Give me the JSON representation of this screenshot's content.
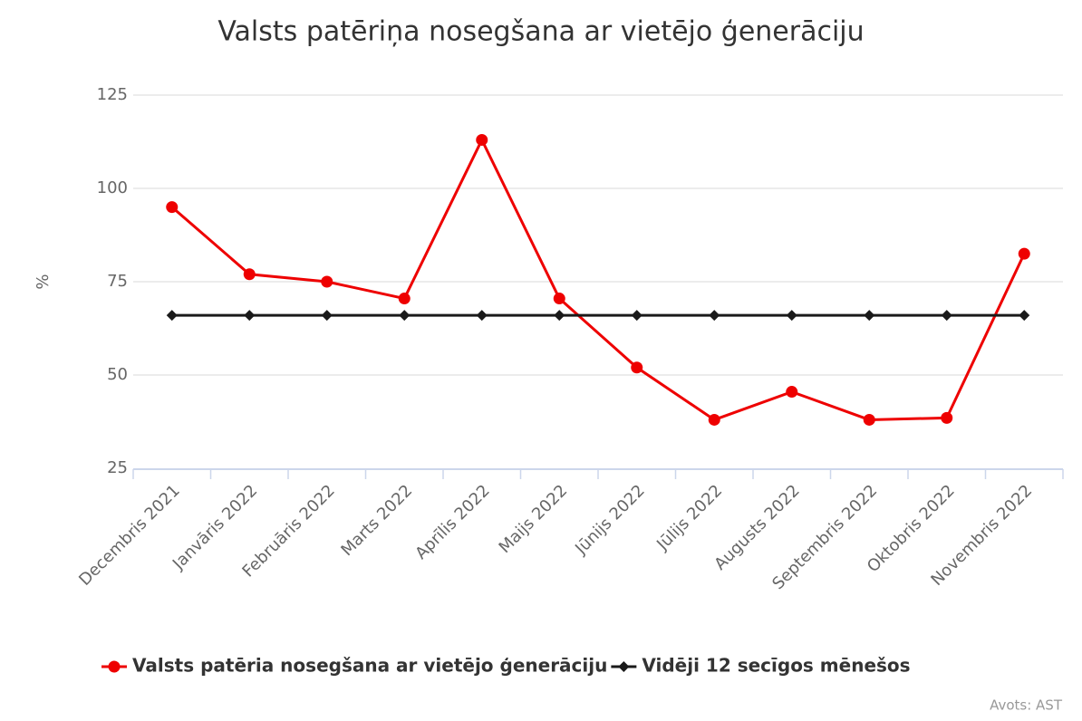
{
  "chart_data": {
    "type": "line",
    "title": "Valsts patēriņa nosegšana ar vietējo ģenerāciju",
    "y_label": "%",
    "source": "Avots: AST",
    "categories": [
      "Decembris 2021",
      "Janvāris 2022",
      "Februāris 2022",
      "Marts 2022",
      "Aprīlis 2022",
      "Maijs 2022",
      "Jūnijs 2022",
      "Jūlijs 2022",
      "Augusts 2022",
      "Septembris 2022",
      "Oktobris 2022",
      "Novembris 2022"
    ],
    "series": [
      {
        "name": "Valsts patēria nosegšana ar vietējo ģenerāciju",
        "color": "#ee0000",
        "marker": "circle",
        "values": [
          95,
          77,
          75,
          70.5,
          113,
          70.5,
          52,
          38,
          45.5,
          38,
          38.5,
          82.5
        ]
      },
      {
        "name": "Vidēji 12 secīgos mēnešos",
        "color": "#1a1a1a",
        "marker": "diamond",
        "values": [
          66,
          66,
          66,
          66,
          66,
          66,
          66,
          66,
          66,
          66,
          66,
          66
        ]
      }
    ],
    "ylim": [
      25,
      125
    ],
    "yticks": [
      25,
      50,
      75,
      100,
      125
    ],
    "grid": true,
    "legend": "bottom"
  }
}
